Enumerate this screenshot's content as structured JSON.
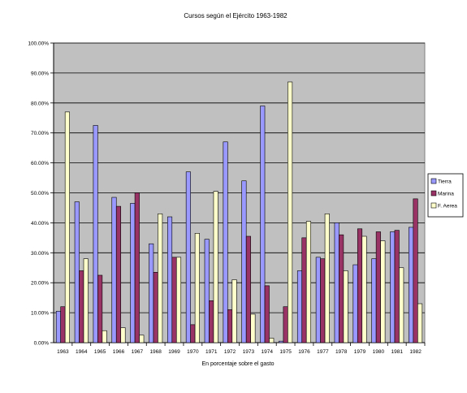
{
  "chart_data": {
    "type": "bar",
    "title": "Cursos según el Ejército 1963-1982",
    "xlabel": "En porcentaje sobre el gasto",
    "ylabel": "",
    "ylim": [
      0,
      100
    ],
    "yticks": [
      "0.00%",
      "10.00%",
      "20.00%",
      "30.00%",
      "40.00%",
      "50.00%",
      "60.00%",
      "70.00%",
      "80.00%",
      "90.00%",
      "100.00%"
    ],
    "categories": [
      "1963",
      "1964",
      "1965",
      "1966",
      "1967",
      "1968",
      "1969",
      "1970",
      "1971",
      "1972",
      "1973",
      "1974",
      "1975",
      "1976",
      "1977",
      "1978",
      "1979",
      "1980",
      "1981",
      "1982"
    ],
    "series": [
      {
        "name": "Tierra",
        "color": "#9999ff",
        "values": [
          10.5,
          47,
          72.5,
          48.5,
          46.5,
          33,
          42,
          57,
          34.5,
          67,
          54,
          79,
          0.5,
          24,
          28.5,
          40,
          26,
          28,
          37,
          38.5
        ]
      },
      {
        "name": "Marina",
        "color": "#993366",
        "values": [
          12,
          24,
          22.5,
          45.5,
          50,
          23.5,
          28.5,
          6,
          14,
          11,
          35.5,
          19,
          12,
          35,
          28,
          36,
          38,
          37,
          37.5,
          48
        ]
      },
      {
        "name": "F. Aerea",
        "color": "#ffffcc",
        "values": [
          77,
          28,
          4,
          5,
          2.5,
          43,
          28.5,
          36.5,
          50.5,
          21,
          9.5,
          1.5,
          87,
          40.5,
          43,
          24,
          35.5,
          34,
          25,
          13
        ]
      }
    ],
    "grid": true,
    "legend_position": "right"
  },
  "colors": {
    "plot_background": "#c0c0c0",
    "gridline": "#000000"
  }
}
